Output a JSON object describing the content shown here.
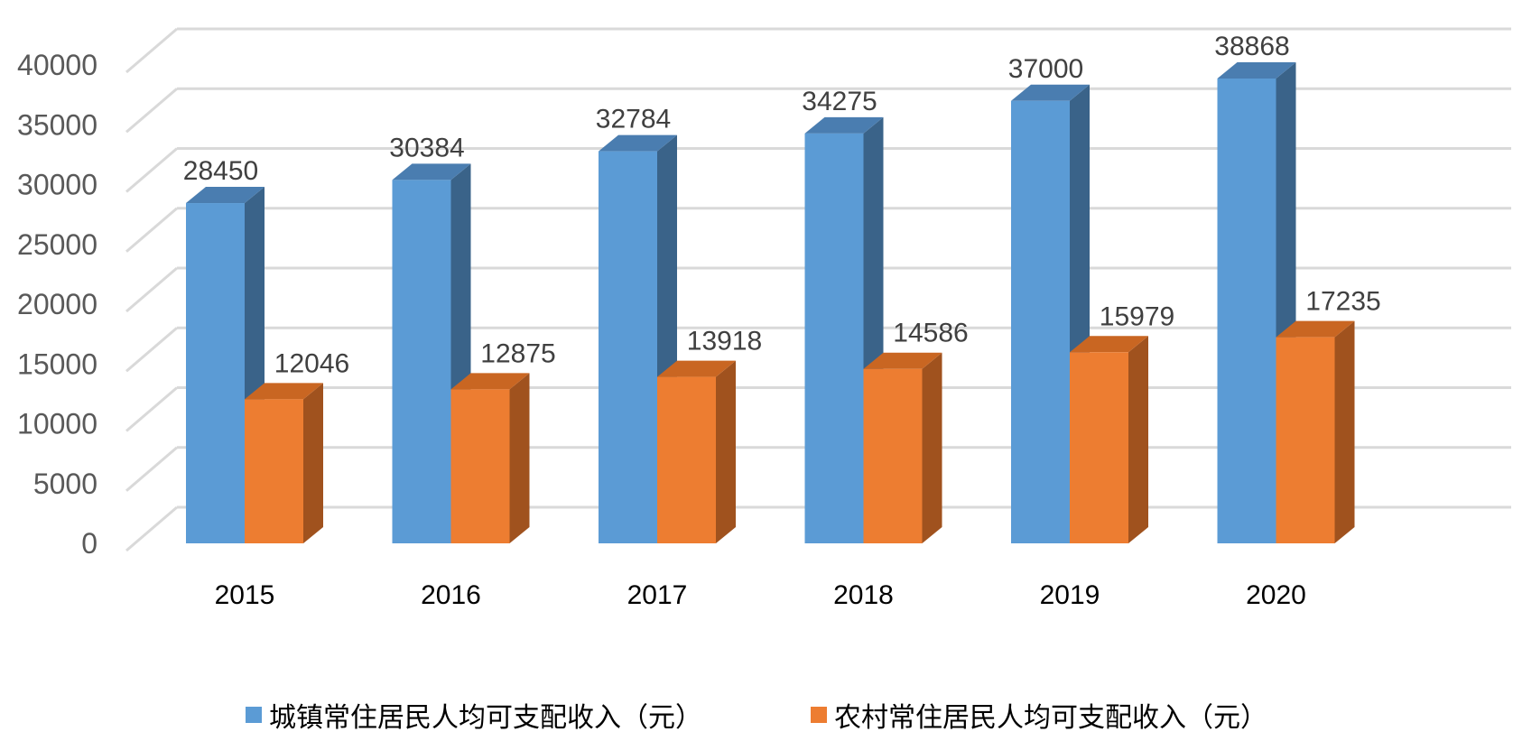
{
  "chart_data": {
    "type": "bar",
    "categories": [
      "2015",
      "2016",
      "2017",
      "2018",
      "2019",
      "2020"
    ],
    "series": [
      {
        "name": "城镇常住居民人均可支配收入（元）",
        "values": [
          28450,
          30384,
          32784,
          34275,
          37000,
          38868
        ],
        "color": "#5B9BD5",
        "side_color": "#3A6389",
        "top_color": "#4A7DB0"
      },
      {
        "name": "农村常住居民人均可支配收入（元）",
        "values": [
          12046,
          12875,
          13918,
          14586,
          15979,
          17235
        ],
        "color": "#ED7D31",
        "side_color": "#A0521E",
        "top_color": "#C96622"
      }
    ],
    "y_ticks": [
      "0",
      "5000",
      "10000",
      "15000",
      "20000",
      "25000",
      "30000",
      "35000",
      "40000"
    ],
    "ylim": [
      0,
      40000
    ],
    "grid": true,
    "legend_position": "bottom",
    "style": "3d-clustered-column"
  }
}
